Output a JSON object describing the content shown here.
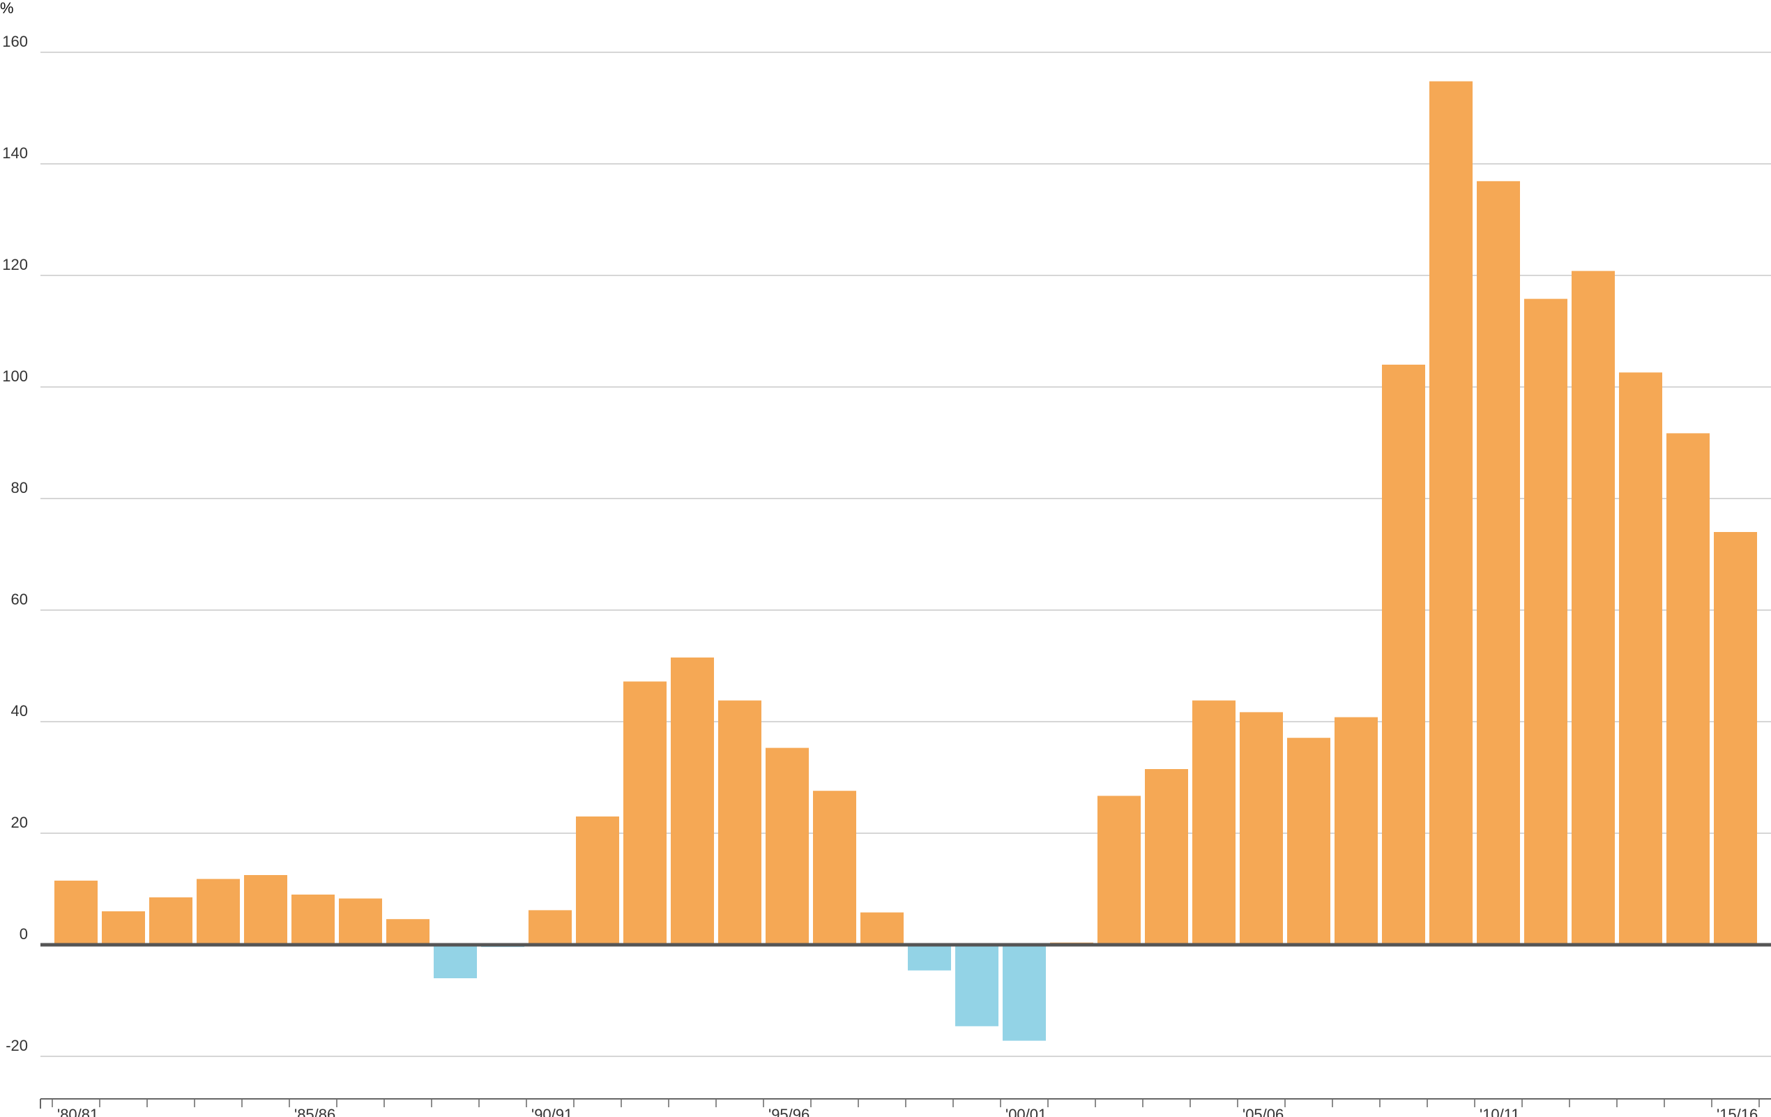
{
  "colors": {
    "positive": "#f5a855",
    "negative": "#93d3e6",
    "grid": "#c9c9c9",
    "zero_line": "#555555",
    "axis": "#666666",
    "text": "#333333",
    "background": "#ffffff"
  },
  "chart_data": {
    "type": "bar",
    "title": "",
    "subtitle": "",
    "xlabel": "",
    "ylabel": "%",
    "unit": "%",
    "grid": true,
    "legend": "none",
    "ylim": [
      -28,
      164
    ],
    "yticks": [
      -20,
      0,
      20,
      40,
      60,
      80,
      100,
      120,
      140,
      160
    ],
    "categories": [
      "1980/81",
      "1981/82",
      "1982/83",
      "1983/84",
      "1984/85",
      "1985/86",
      "1986/87",
      "1987/88",
      "1988/89",
      "1989/90",
      "1990/91",
      "1991/92",
      "1992/93",
      "1993/94",
      "1994/95",
      "1995/96",
      "1996/97",
      "1997/98",
      "1998/99",
      "1999/00",
      "2000/01",
      "2001/02",
      "2002/03",
      "2003/04",
      "2004/05",
      "2005/06",
      "2006/07",
      "2007/08",
      "2008/09",
      "2009/10",
      "2010/11",
      "2011/12",
      "2012/13",
      "2013/14",
      "2014/15",
      "2015/16"
    ],
    "xtick_labels": [
      "'80/81",
      "'85/86",
      "'90/91",
      "'95/96",
      "'00/01",
      "'05/06",
      "'10/11",
      "'15/16"
    ],
    "xtick_label_categories": [
      0,
      5,
      10,
      15,
      20,
      25,
      30,
      35
    ],
    "values": [
      11.5,
      6.0,
      8.5,
      11.8,
      12.5,
      9.0,
      8.3,
      4.6,
      -6.0,
      -0.4,
      6.2,
      23.0,
      47.2,
      51.5,
      43.8,
      35.3,
      27.6,
      5.8,
      -4.6,
      -14.6,
      -17.2,
      0.4,
      26.7,
      31.5,
      43.8,
      41.7,
      37.1,
      40.8,
      104.0,
      154.8,
      136.9,
      115.8,
      120.8,
      102.6,
      91.7,
      74.0
    ]
  }
}
